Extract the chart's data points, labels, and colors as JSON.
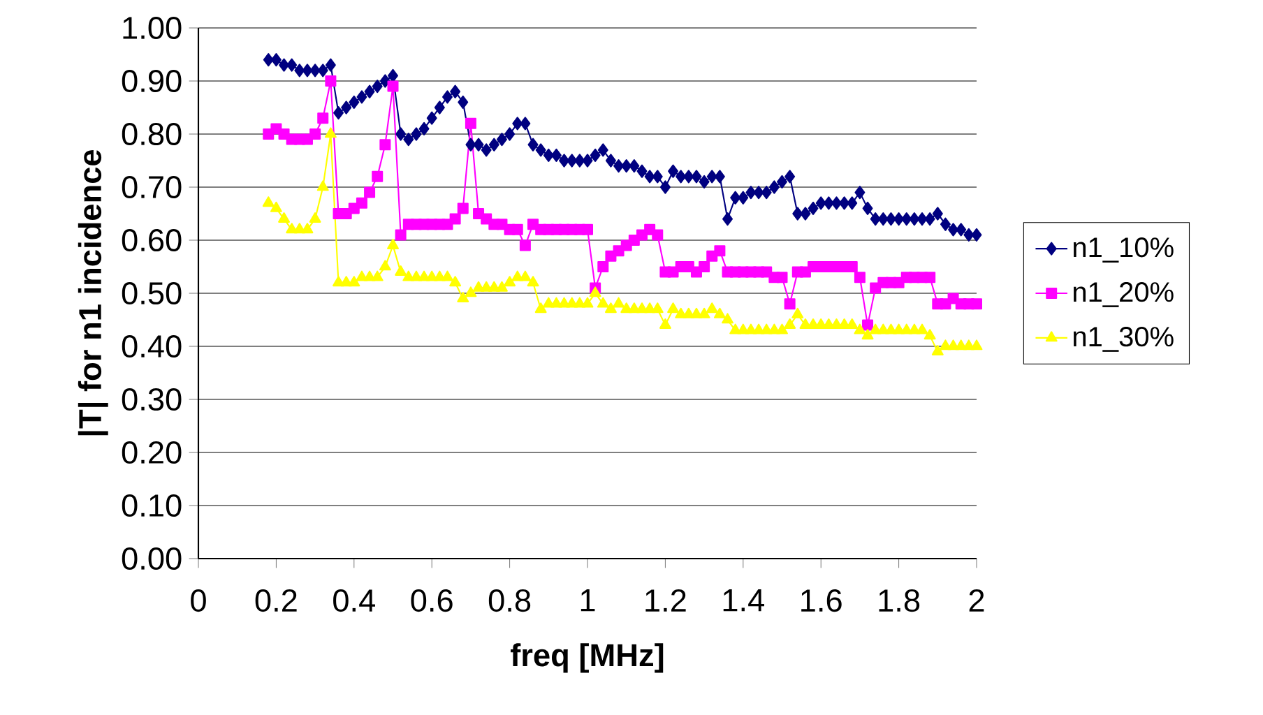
{
  "chart_data": {
    "type": "line",
    "xlabel": "freq [MHz]",
    "ylabel": "|T| for n1 incidence",
    "x": [
      0.18,
      0.2,
      0.22,
      0.24,
      0.26,
      0.28,
      0.3,
      0.32,
      0.34,
      0.36,
      0.38,
      0.4,
      0.42,
      0.44,
      0.46,
      0.48,
      0.5,
      0.52,
      0.54,
      0.56,
      0.58,
      0.6,
      0.62,
      0.64,
      0.66,
      0.68,
      0.7,
      0.72,
      0.74,
      0.76,
      0.78,
      0.8,
      0.82,
      0.84,
      0.86,
      0.88,
      0.9,
      0.92,
      0.94,
      0.96,
      0.98,
      1.0,
      1.02,
      1.04,
      1.06,
      1.08,
      1.1,
      1.12,
      1.14,
      1.16,
      1.18,
      1.2,
      1.22,
      1.24,
      1.26,
      1.28,
      1.3,
      1.32,
      1.34,
      1.36,
      1.38,
      1.4,
      1.42,
      1.44,
      1.46,
      1.48,
      1.5,
      1.52,
      1.54,
      1.56,
      1.58,
      1.6,
      1.62,
      1.64,
      1.66,
      1.68,
      1.7,
      1.72,
      1.74,
      1.76,
      1.78,
      1.8,
      1.82,
      1.84,
      1.86,
      1.88,
      1.9,
      1.92,
      1.94,
      1.96,
      1.98,
      2.0
    ],
    "series": [
      {
        "name": "n1_10%",
        "color": "#000080",
        "marker": "diamond",
        "values": [
          0.94,
          0.94,
          0.93,
          0.93,
          0.92,
          0.92,
          0.92,
          0.92,
          0.93,
          0.84,
          0.85,
          0.86,
          0.87,
          0.88,
          0.89,
          0.9,
          0.91,
          0.8,
          0.79,
          0.8,
          0.81,
          0.83,
          0.85,
          0.87,
          0.88,
          0.86,
          0.78,
          0.78,
          0.77,
          0.78,
          0.79,
          0.8,
          0.82,
          0.82,
          0.78,
          0.77,
          0.76,
          0.76,
          0.75,
          0.75,
          0.75,
          0.75,
          0.76,
          0.77,
          0.75,
          0.74,
          0.74,
          0.74,
          0.73,
          0.72,
          0.72,
          0.7,
          0.73,
          0.72,
          0.72,
          0.72,
          0.71,
          0.72,
          0.72,
          0.64,
          0.68,
          0.68,
          0.69,
          0.69,
          0.69,
          0.7,
          0.71,
          0.72,
          0.65,
          0.65,
          0.66,
          0.67,
          0.67,
          0.67,
          0.67,
          0.67,
          0.69,
          0.66,
          0.64,
          0.64,
          0.64,
          0.64,
          0.64,
          0.64,
          0.64,
          0.64,
          0.65,
          0.63,
          0.62,
          0.62,
          0.61,
          0.61
        ]
      },
      {
        "name": "n1_20%",
        "color": "#ff00ff",
        "marker": "square",
        "values": [
          0.8,
          0.81,
          0.8,
          0.79,
          0.79,
          0.79,
          0.8,
          0.83,
          0.9,
          0.65,
          0.65,
          0.66,
          0.67,
          0.69,
          0.72,
          0.78,
          0.89,
          0.61,
          0.63,
          0.63,
          0.63,
          0.63,
          0.63,
          0.63,
          0.64,
          0.66,
          0.82,
          0.65,
          0.64,
          0.63,
          0.63,
          0.62,
          0.62,
          0.59,
          0.63,
          0.62,
          0.62,
          0.62,
          0.62,
          0.62,
          0.62,
          0.62,
          0.51,
          0.55,
          0.57,
          0.58,
          0.59,
          0.6,
          0.61,
          0.62,
          0.61,
          0.54,
          0.54,
          0.55,
          0.55,
          0.54,
          0.55,
          0.57,
          0.58,
          0.54,
          0.54,
          0.54,
          0.54,
          0.54,
          0.54,
          0.53,
          0.53,
          0.48,
          0.54,
          0.54,
          0.55,
          0.55,
          0.55,
          0.55,
          0.55,
          0.55,
          0.53,
          0.44,
          0.51,
          0.52,
          0.52,
          0.52,
          0.53,
          0.53,
          0.53,
          0.53,
          0.48,
          0.48,
          0.49,
          0.48,
          0.48,
          0.48
        ]
      },
      {
        "name": "n1_30%",
        "color": "#ffff00",
        "marker": "triangle",
        "values": [
          0.67,
          0.66,
          0.64,
          0.62,
          0.62,
          0.62,
          0.64,
          0.7,
          0.8,
          0.52,
          0.52,
          0.52,
          0.53,
          0.53,
          0.53,
          0.55,
          0.59,
          0.54,
          0.53,
          0.53,
          0.53,
          0.53,
          0.53,
          0.53,
          0.52,
          0.49,
          0.5,
          0.51,
          0.51,
          0.51,
          0.51,
          0.52,
          0.53,
          0.53,
          0.52,
          0.47,
          0.48,
          0.48,
          0.48,
          0.48,
          0.48,
          0.48,
          0.5,
          0.48,
          0.47,
          0.48,
          0.47,
          0.47,
          0.47,
          0.47,
          0.47,
          0.44,
          0.47,
          0.46,
          0.46,
          0.46,
          0.46,
          0.47,
          0.46,
          0.45,
          0.43,
          0.43,
          0.43,
          0.43,
          0.43,
          0.43,
          0.43,
          0.44,
          0.46,
          0.44,
          0.44,
          0.44,
          0.44,
          0.44,
          0.44,
          0.44,
          0.43,
          0.42,
          0.43,
          0.43,
          0.43,
          0.43,
          0.43,
          0.43,
          0.43,
          0.42,
          0.39,
          0.4,
          0.4,
          0.4,
          0.4,
          0.4
        ]
      }
    ],
    "xlim": [
      0,
      2
    ],
    "xticks": [
      0,
      0.2,
      0.4,
      0.6,
      0.8,
      1,
      1.2,
      1.4,
      1.6,
      1.8,
      2
    ],
    "ylim": [
      0,
      1
    ],
    "yticks": [
      {
        "value": 0,
        "label": "0.00"
      },
      {
        "value": 0.1,
        "label": "0.10"
      },
      {
        "value": 0.2,
        "label": "0.20"
      },
      {
        "value": 0.3,
        "label": "0.30"
      },
      {
        "value": 0.4,
        "label": "0.40"
      },
      {
        "value": 0.5,
        "label": "0.50"
      },
      {
        "value": 0.6,
        "label": "0.60"
      },
      {
        "value": 0.7,
        "label": "0.70"
      },
      {
        "value": 0.8,
        "label": "0.80"
      },
      {
        "value": 0.9,
        "label": "0.90"
      },
      {
        "value": 1,
        "label": "1.00"
      }
    ],
    "grid": "y",
    "legend": "right",
    "line_style": "solid"
  }
}
